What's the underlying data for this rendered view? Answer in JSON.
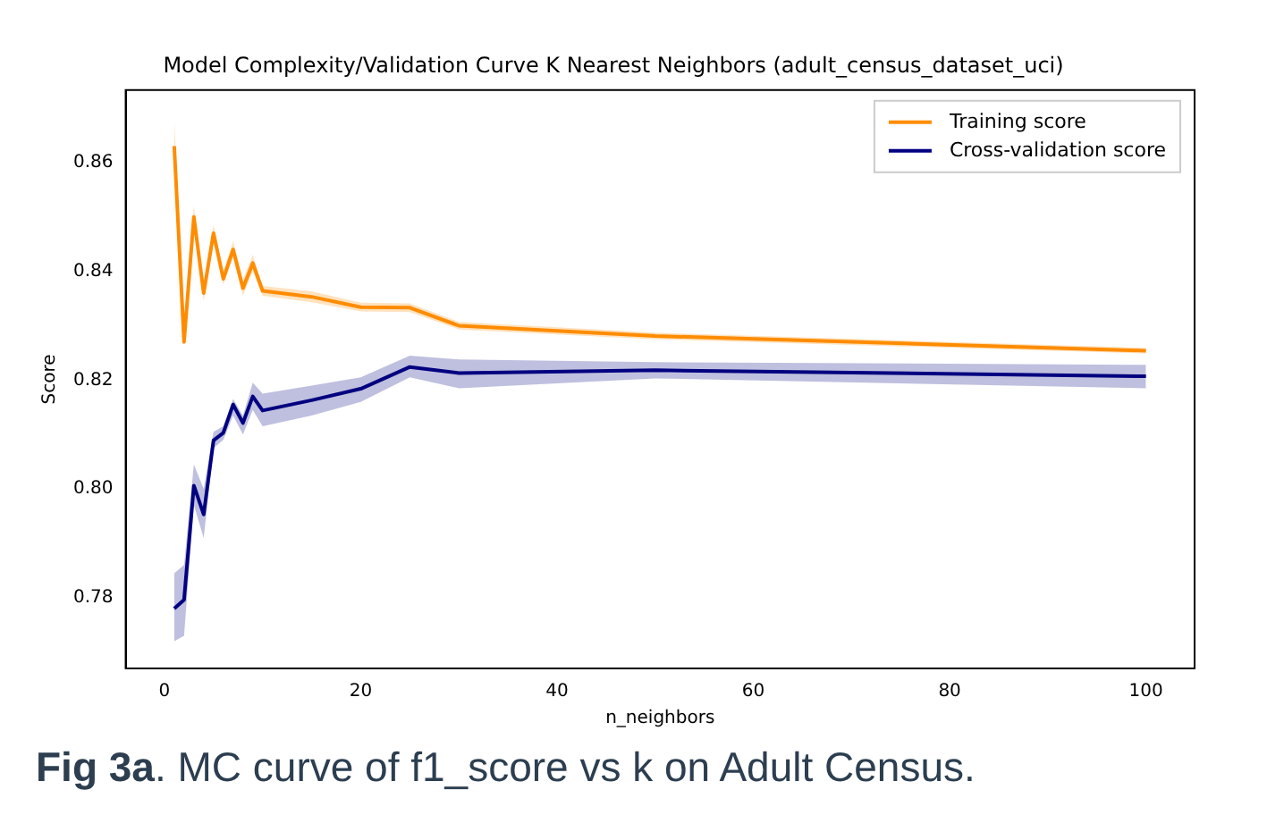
{
  "chart_data": {
    "type": "line",
    "title": "Model Complexity/Validation Curve K Nearest Neighbors (adult_census_dataset_uci)",
    "xlabel": "n_neighbors",
    "ylabel": "Score",
    "x": [
      1,
      2,
      3,
      4,
      5,
      6,
      7,
      8,
      9,
      10,
      15,
      20,
      25,
      30,
      50,
      100
    ],
    "series": [
      {
        "name": "Training score",
        "color": "#ff8c00",
        "values": [
          0.863,
          0.827,
          0.85,
          0.836,
          0.847,
          0.8386,
          0.844,
          0.8369,
          0.8415,
          0.8364,
          0.8353,
          0.8334,
          0.8333,
          0.83,
          0.8281,
          0.8254
        ],
        "lower": [
          0.8595,
          0.8265,
          0.8485,
          0.8345,
          0.8455,
          0.8375,
          0.8425,
          0.8355,
          0.84,
          0.8355,
          0.8343,
          0.8326,
          0.8325,
          0.8293,
          0.8275,
          0.8249
        ],
        "upper": [
          0.868,
          0.8275,
          0.852,
          0.8375,
          0.8485,
          0.84,
          0.8455,
          0.8385,
          0.843,
          0.8373,
          0.8363,
          0.8342,
          0.8341,
          0.8307,
          0.8287,
          0.8259
        ]
      },
      {
        "name": "Cross-validation score",
        "color": "#000080",
        "values": [
          0.778,
          0.7796,
          0.8006,
          0.7953,
          0.8089,
          0.8103,
          0.8155,
          0.8121,
          0.817,
          0.8144,
          0.8163,
          0.8184,
          0.8224,
          0.8213,
          0.8218,
          0.8207
        ],
        "lower": [
          0.772,
          0.773,
          0.797,
          0.791,
          0.8075,
          0.809,
          0.8135,
          0.81,
          0.8145,
          0.8115,
          0.8135,
          0.816,
          0.8205,
          0.8185,
          0.8203,
          0.8185
        ],
        "upper": [
          0.7845,
          0.786,
          0.8045,
          0.8,
          0.8105,
          0.8115,
          0.8165,
          0.8135,
          0.8195,
          0.8175,
          0.819,
          0.8205,
          0.8245,
          0.8238,
          0.8233,
          0.8228
        ]
      }
    ],
    "xlim": [
      -3.95,
      104.95
    ],
    "ylim": [
      0.767,
      0.8733
    ],
    "xticks": [
      0,
      20,
      40,
      60,
      80,
      100
    ],
    "yticks": [
      {
        "value": 0.78,
        "label": "0.78"
      },
      {
        "value": 0.8,
        "label": "0.80"
      },
      {
        "value": 0.82,
        "label": "0.82"
      },
      {
        "value": 0.84,
        "label": "0.84"
      },
      {
        "value": 0.86,
        "label": "0.86"
      }
    ],
    "grid": false,
    "legend": "top right",
    "marker": "none",
    "line_style": "solid",
    "annotations": [
      "Fig 3a. MC curve of f1_score vs k on Adult Census."
    ]
  }
}
